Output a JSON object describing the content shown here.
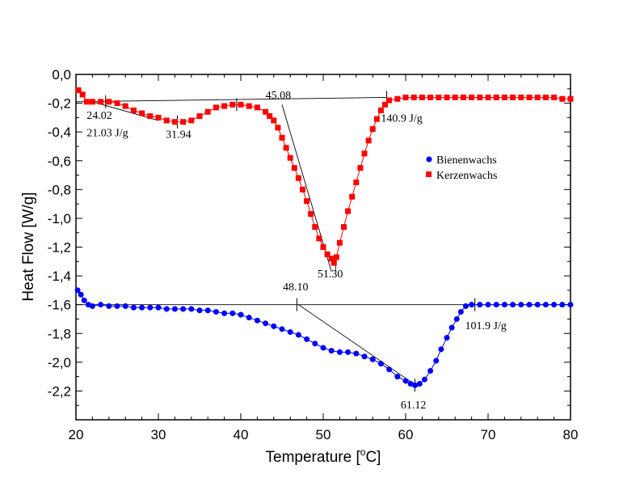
{
  "chart_data": {
    "type": "scatter",
    "xlabel": "Temperature [",
    "xlabel_unit": "C]",
    "xlabel_degree": "o",
    "ylabel": "Heat Flow [W/g]",
    "xlim": [
      20,
      80
    ],
    "ylim": [
      -2.4,
      0.0
    ],
    "x_ticks": [
      20,
      30,
      40,
      50,
      60,
      70,
      80
    ],
    "x_tick_labels": [
      "20",
      "30",
      "40",
      "50",
      "60",
      "70",
      "80"
    ],
    "y_ticks": [
      0.0,
      -0.2,
      -0.4,
      -0.6,
      -0.8,
      -1.0,
      -1.2,
      -1.4,
      -1.6,
      -1.8,
      -2.0,
      -2.2
    ],
    "y_tick_labels": [
      "0,0",
      "-0,2",
      "-0,4",
      "-0,6",
      "-0,8",
      "-1,0",
      "-1,2",
      "-1,4",
      "-1,6",
      "-1,8",
      "-2,0",
      "-2,2"
    ],
    "legend_position": "right",
    "grid": false,
    "series": [
      {
        "name": "Bienenwachs",
        "color": "#0000ff",
        "marker": "circle",
        "x": [
          20.2,
          20.6,
          21.0,
          21.5,
          22.0,
          23.0,
          24.0,
          25.0,
          26.0,
          27.0,
          28.0,
          29.0,
          30.0,
          31.0,
          32.0,
          33.0,
          34.0,
          35.0,
          36.0,
          37.0,
          38.0,
          39.0,
          40.0,
          41.0,
          42.0,
          43.0,
          44.0,
          45.0,
          46.0,
          47.0,
          48.0,
          49.0,
          50.0,
          51.0,
          52.0,
          53.0,
          54.0,
          55.0,
          56.0,
          57.0,
          58.0,
          59.0,
          60.0,
          60.6,
          61.12,
          61.7,
          62.3,
          63.0,
          63.7,
          64.3,
          65.0,
          65.6,
          66.2,
          66.7,
          67.3,
          68.0,
          69.0,
          70.0,
          71.0,
          72.0,
          73.0,
          74.0,
          75.0,
          76.0,
          77.0,
          78.0,
          79.0,
          80.0
        ],
        "y": [
          -1.5,
          -1.53,
          -1.57,
          -1.6,
          -1.61,
          -1.6,
          -1.61,
          -1.61,
          -1.61,
          -1.62,
          -1.62,
          -1.62,
          -1.62,
          -1.63,
          -1.63,
          -1.63,
          -1.63,
          -1.64,
          -1.64,
          -1.65,
          -1.66,
          -1.66,
          -1.67,
          -1.69,
          -1.71,
          -1.73,
          -1.75,
          -1.77,
          -1.79,
          -1.81,
          -1.84,
          -1.87,
          -1.9,
          -1.92,
          -1.93,
          -1.93,
          -1.94,
          -1.96,
          -1.98,
          -2.01,
          -2.05,
          -2.1,
          -2.13,
          -2.15,
          -2.16,
          -2.15,
          -2.12,
          -2.06,
          -1.99,
          -1.91,
          -1.83,
          -1.76,
          -1.7,
          -1.65,
          -1.61,
          -1.6,
          -1.6,
          -1.6,
          -1.6,
          -1.6,
          -1.6,
          -1.6,
          -1.6,
          -1.6,
          -1.6,
          -1.6,
          -1.6,
          -1.6
        ]
      },
      {
        "name": "Kerzenwachs",
        "color": "#ff0000",
        "marker": "square",
        "x": [
          20.3,
          20.8,
          21.3,
          22.0,
          23.0,
          24.0,
          25.0,
          26.0,
          27.0,
          28.0,
          29.0,
          30.0,
          31.0,
          32.0,
          33.0,
          34.0,
          35.0,
          36.0,
          37.0,
          38.0,
          39.0,
          40.0,
          41.0,
          42.0,
          43.0,
          43.5,
          44.0,
          44.5,
          45.0,
          45.5,
          46.0,
          46.5,
          47.0,
          47.5,
          48.0,
          48.5,
          49.0,
          49.5,
          50.0,
          50.5,
          51.0,
          51.3,
          51.6,
          52.0,
          52.5,
          53.0,
          53.5,
          54.0,
          54.5,
          55.0,
          55.5,
          56.0,
          56.5,
          57.0,
          57.5,
          58.0,
          59.0,
          60.0,
          61.0,
          62.0,
          63.0,
          64.0,
          65.0,
          66.0,
          67.0,
          68.0,
          69.0,
          70.0,
          71.0,
          72.0,
          73.0,
          74.0,
          75.0,
          76.0,
          77.0,
          78.0,
          79.0,
          80.0
        ],
        "y": [
          -0.11,
          -0.14,
          -0.19,
          -0.19,
          -0.19,
          -0.19,
          -0.2,
          -0.22,
          -0.25,
          -0.27,
          -0.29,
          -0.3,
          -0.32,
          -0.33,
          -0.33,
          -0.32,
          -0.29,
          -0.26,
          -0.23,
          -0.22,
          -0.21,
          -0.21,
          -0.22,
          -0.23,
          -0.26,
          -0.29,
          -0.32,
          -0.37,
          -0.44,
          -0.51,
          -0.58,
          -0.65,
          -0.72,
          -0.8,
          -0.88,
          -0.97,
          -1.06,
          -1.14,
          -1.2,
          -1.25,
          -1.28,
          -1.31,
          -1.27,
          -1.17,
          -1.06,
          -0.95,
          -0.85,
          -0.75,
          -0.65,
          -0.55,
          -0.46,
          -0.38,
          -0.31,
          -0.25,
          -0.21,
          -0.18,
          -0.17,
          -0.16,
          -0.16,
          -0.16,
          -0.16,
          -0.16,
          -0.16,
          -0.16,
          -0.16,
          -0.16,
          -0.16,
          -0.16,
          -0.16,
          -0.16,
          -0.16,
          -0.16,
          -0.16,
          -0.16,
          -0.16,
          -0.16,
          -0.17,
          -0.17
        ]
      }
    ],
    "annotation_lines": [
      {
        "series": "Kerzenwachs",
        "x": [
          20.0,
          57.7
        ],
        "y": [
          -0.19,
          -0.16
        ]
      },
      {
        "series": "Kerzenwachs",
        "x": [
          22.0,
          30.0
        ],
        "y": [
          -0.19,
          -0.32
        ]
      },
      {
        "series": "Kerzenwachs",
        "x": [
          45.0,
          51.0
        ],
        "y": [
          -0.21,
          -1.37
        ]
      },
      {
        "series": "Kerzenwachs",
        "x": [
          51.5,
          51.5
        ],
        "y": [
          -1.26,
          -1.37
        ]
      },
      {
        "series": "Bienenwachs",
        "x": [
          20.0,
          80.0
        ],
        "y": [
          -1.6,
          -1.6
        ]
      },
      {
        "series": "Bienenwachs",
        "x": [
          47.0,
          61.5
        ],
        "y": [
          -1.6,
          -2.17
        ]
      }
    ],
    "annotation_ticks": [
      {
        "x": 23.6,
        "y": -0.19
      },
      {
        "x": 32.3,
        "y": -0.33
      },
      {
        "x": 39.5,
        "y": -0.21
      },
      {
        "x": 57.7,
        "y": -0.16
      },
      {
        "x": 46.8,
        "y": -1.6
      },
      {
        "x": 68.4,
        "y": -1.6
      },
      {
        "x": 61.12,
        "y": -2.16
      }
    ],
    "annotations": [
      {
        "text": "24.02",
        "x": 21.3,
        "y": -0.31
      },
      {
        "text": "21.03 J/g",
        "x": 21.3,
        "y": -0.43
      },
      {
        "text": "31.94",
        "x": 30.9,
        "y": -0.44
      },
      {
        "text": "45.08",
        "x": 43.0,
        "y": -0.17
      },
      {
        "text": "140.9 J/g",
        "x": 57.0,
        "y": -0.33
      },
      {
        "text": "51.30",
        "x": 49.3,
        "y": -1.41
      },
      {
        "text": "48.10",
        "x": 45.1,
        "y": -1.5
      },
      {
        "text": "101.9 J/g",
        "x": 67.2,
        "y": -1.77
      },
      {
        "text": "61.12",
        "x": 59.4,
        "y": -2.32
      }
    ]
  }
}
